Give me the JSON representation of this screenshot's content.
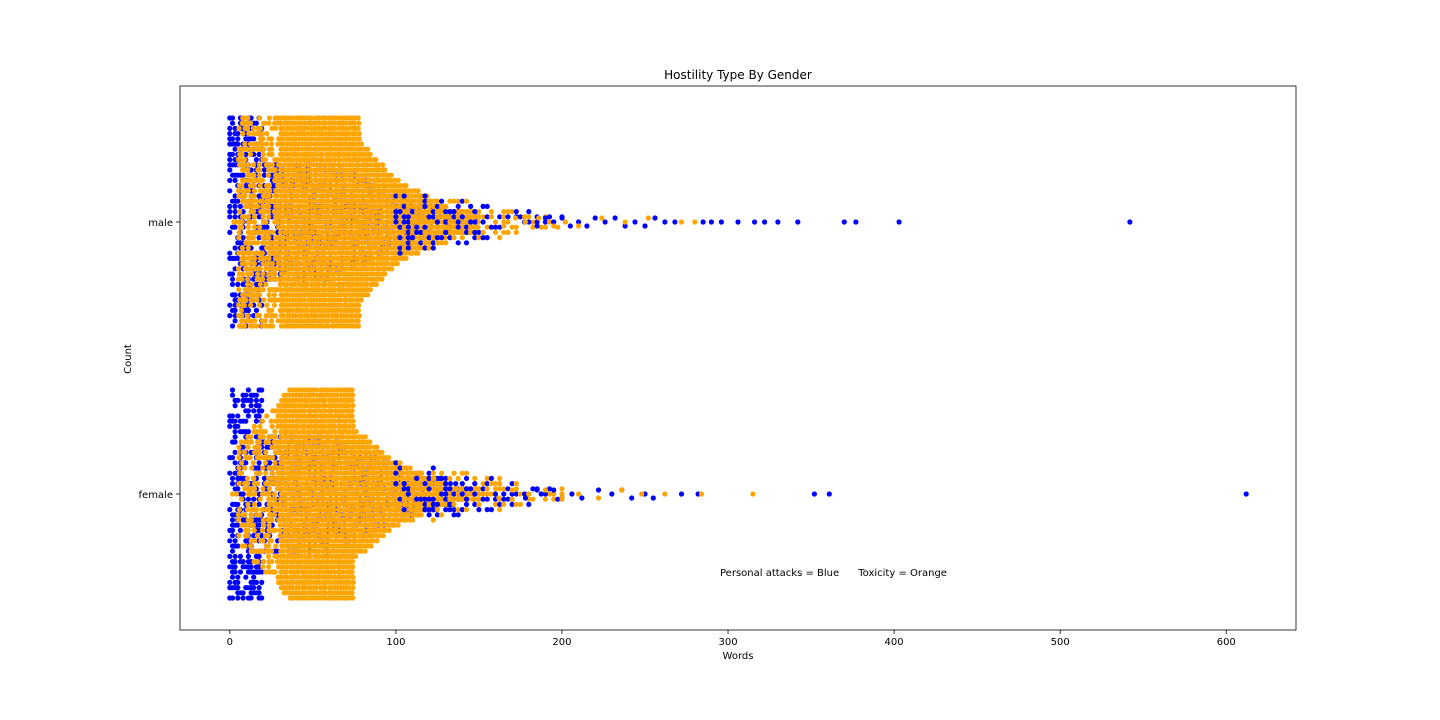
{
  "chart_data": {
    "type": "scatter",
    "subtype": "swarm",
    "title": "Hostility Type By Gender",
    "xlabel": "Words",
    "ylabel": "Count",
    "xlim": [
      -30,
      642
    ],
    "xticks": [
      0,
      100,
      200,
      300,
      400,
      500,
      600
    ],
    "categories": [
      "male",
      "female"
    ],
    "annotation": "Personal attacks = Blue      Toxicity = Orange",
    "grid": false,
    "series": [
      {
        "color": "#0000ff",
        "outliers": {
          "male": [
            180,
            185,
            190,
            195,
            200,
            205,
            210,
            215,
            220,
            226,
            232,
            238,
            244,
            250,
            256,
            262,
            268,
            285,
            290,
            296,
            306,
            316,
            322,
            330,
            342,
            370,
            377,
            403,
            542
          ],
          "female": [
            170,
            178,
            185,
            190,
            195,
            200,
            206,
            212,
            222,
            230,
            236,
            242,
            250,
            255,
            272,
            282,
            352,
            361,
            612
          ]
        }
      },
      {
        "color": "#ffa500",
        "outliers": {
          "male": [
            160,
            165,
            172,
            178,
            186,
            195,
            202,
            210,
            224,
            238,
            252,
            272,
            280
          ],
          "female": [
            152,
            162,
            170,
            180,
            190,
            200,
            210,
            222,
            236,
            248,
            262,
            284,
            315
          ]
        }
      }
    ]
  }
}
